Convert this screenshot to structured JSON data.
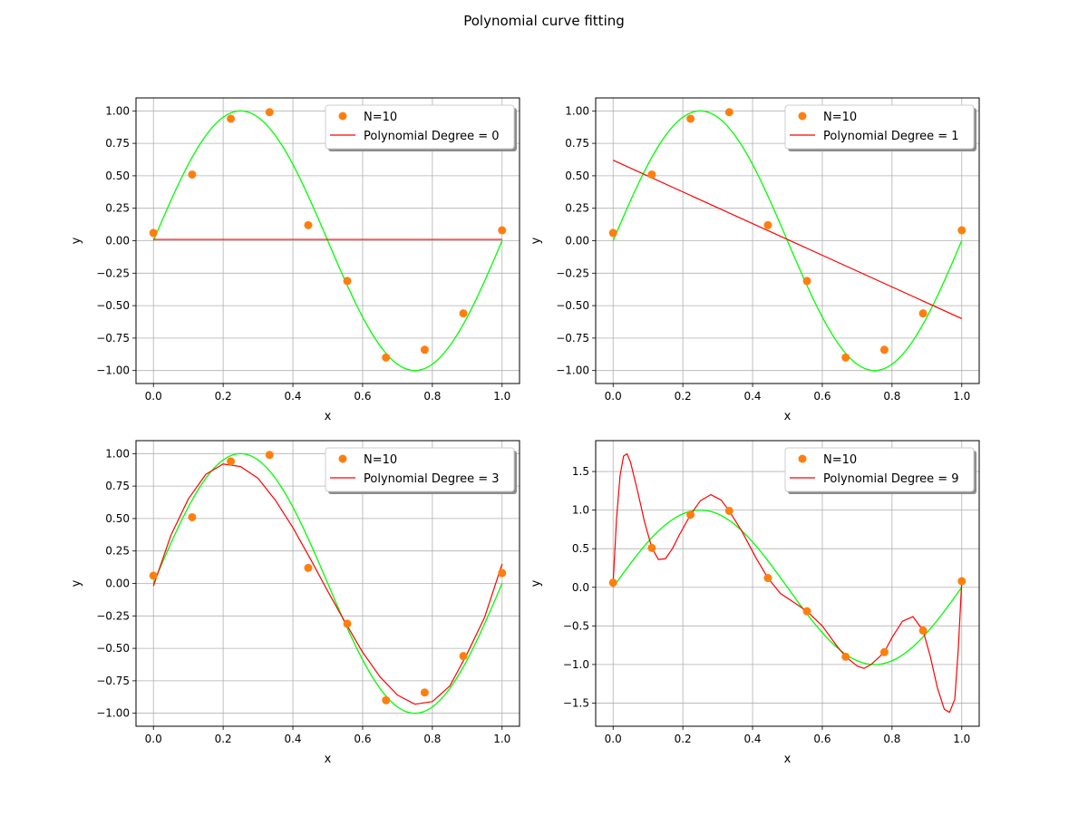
{
  "figure": {
    "title": "Polynomial curve fitting"
  },
  "colors": {
    "points": "#ff7f0e",
    "fit": "#ff0000",
    "truth": "#00ff00",
    "grid": "#b0b0b0"
  },
  "chart_data": [
    {
      "type": "scatter",
      "xlabel": "x",
      "ylabel": "y",
      "xlim": [
        -0.05,
        1.05
      ],
      "ylim": [
        -1.1,
        1.1
      ],
      "xticks": [
        0.0,
        0.2,
        0.4,
        0.6,
        0.8,
        1.0
      ],
      "xtick_labels": [
        "0.0",
        "0.2",
        "0.4",
        "0.6",
        "0.8",
        "1.0"
      ],
      "yticks": [
        -1.0,
        -0.75,
        -0.5,
        -0.25,
        0.0,
        0.25,
        0.5,
        0.75,
        1.0
      ],
      "ytick_labels": [
        "−1.00",
        "−0.75",
        "−0.50",
        "−0.25",
        "0.00",
        "0.25",
        "0.50",
        "0.75",
        "1.00"
      ],
      "grid": true,
      "legend_position": "top-right",
      "points_label": "N=10",
      "fit_label": "Polynomial Degree = 0",
      "degree": 0,
      "points": {
        "x": [
          0.0,
          0.111,
          0.222,
          0.333,
          0.444,
          0.556,
          0.667,
          0.778,
          0.889,
          1.0
        ],
        "y": [
          0.06,
          0.51,
          0.94,
          0.99,
          0.12,
          -0.31,
          -0.9,
          -0.84,
          -0.56,
          0.08
        ]
      },
      "true_curve": {
        "function": "sin(2*pi*x)",
        "x_range": [
          0,
          1
        ]
      },
      "fit_curve": {
        "x": [
          0.0,
          1.0
        ],
        "y": [
          0.01,
          0.01
        ]
      }
    },
    {
      "type": "scatter",
      "xlabel": "x",
      "ylabel": "y",
      "xlim": [
        -0.05,
        1.05
      ],
      "ylim": [
        -1.1,
        1.1
      ],
      "xticks": [
        0.0,
        0.2,
        0.4,
        0.6,
        0.8,
        1.0
      ],
      "xtick_labels": [
        "0.0",
        "0.2",
        "0.4",
        "0.6",
        "0.8",
        "1.0"
      ],
      "yticks": [
        -1.0,
        -0.75,
        -0.5,
        -0.25,
        0.0,
        0.25,
        0.5,
        0.75,
        1.0
      ],
      "ytick_labels": [
        "−1.00",
        "−0.75",
        "−0.50",
        "−0.25",
        "0.00",
        "0.25",
        "0.50",
        "0.75",
        "1.00"
      ],
      "grid": true,
      "legend_position": "top-right",
      "points_label": "N=10",
      "fit_label": "Polynomial Degree = 1",
      "degree": 1,
      "points": {
        "x": [
          0.0,
          0.111,
          0.222,
          0.333,
          0.444,
          0.556,
          0.667,
          0.778,
          0.889,
          1.0
        ],
        "y": [
          0.06,
          0.51,
          0.94,
          0.99,
          0.12,
          -0.31,
          -0.9,
          -0.84,
          -0.56,
          0.08
        ]
      },
      "true_curve": {
        "function": "sin(2*pi*x)",
        "x_range": [
          0,
          1
        ]
      },
      "fit_curve": {
        "x": [
          0.0,
          1.0
        ],
        "y": [
          0.62,
          -0.6
        ]
      }
    },
    {
      "type": "scatter",
      "xlabel": "x",
      "ylabel": "y",
      "xlim": [
        -0.05,
        1.05
      ],
      "ylim": [
        -1.1,
        1.1
      ],
      "xticks": [
        0.0,
        0.2,
        0.4,
        0.6,
        0.8,
        1.0
      ],
      "xtick_labels": [
        "0.0",
        "0.2",
        "0.4",
        "0.6",
        "0.8",
        "1.0"
      ],
      "yticks": [
        -1.0,
        -0.75,
        -0.5,
        -0.25,
        0.0,
        0.25,
        0.5,
        0.75,
        1.0
      ],
      "ytick_labels": [
        "−1.00",
        "−0.75",
        "−0.50",
        "−0.25",
        "0.00",
        "0.25",
        "0.50",
        "0.75",
        "1.00"
      ],
      "grid": true,
      "legend_position": "top-right",
      "points_label": "N=10",
      "fit_label": "Polynomial Degree = 3",
      "degree": 3,
      "points": {
        "x": [
          0.0,
          0.111,
          0.222,
          0.333,
          0.444,
          0.556,
          0.667,
          0.778,
          0.889,
          1.0
        ],
        "y": [
          0.06,
          0.51,
          0.94,
          0.99,
          0.12,
          -0.31,
          -0.9,
          -0.84,
          -0.56,
          0.08
        ]
      },
      "true_curve": {
        "function": "sin(2*pi*x)",
        "x_range": [
          0,
          1
        ]
      },
      "fit_curve": {
        "x": [
          0.0,
          0.05,
          0.1,
          0.15,
          0.2,
          0.25,
          0.3,
          0.35,
          0.4,
          0.45,
          0.5,
          0.55,
          0.6,
          0.65,
          0.7,
          0.75,
          0.8,
          0.85,
          0.9,
          0.95,
          1.0
        ],
        "y": [
          -0.02,
          0.37,
          0.65,
          0.84,
          0.92,
          0.9,
          0.81,
          0.64,
          0.43,
          0.19,
          -0.06,
          -0.3,
          -0.53,
          -0.72,
          -0.86,
          -0.93,
          -0.91,
          -0.79,
          -0.54,
          -0.26,
          0.15
        ]
      }
    },
    {
      "type": "scatter",
      "xlabel": "x",
      "ylabel": "y",
      "xlim": [
        -0.05,
        1.05
      ],
      "ylim": [
        -1.8,
        1.9
      ],
      "xticks": [
        0.0,
        0.2,
        0.4,
        0.6,
        0.8,
        1.0
      ],
      "xtick_labels": [
        "0.0",
        "0.2",
        "0.4",
        "0.6",
        "0.8",
        "1.0"
      ],
      "yticks": [
        -1.5,
        -1.0,
        -0.5,
        0.0,
        0.5,
        1.0,
        1.5
      ],
      "ytick_labels": [
        "−1.5",
        "−1.0",
        "−0.5",
        "0.0",
        "0.5",
        "1.0",
        "1.5"
      ],
      "grid": true,
      "legend_position": "top-right",
      "points_label": "N=10",
      "fit_label": "Polynomial Degree = 9",
      "degree": 9,
      "points": {
        "x": [
          0.0,
          0.111,
          0.222,
          0.333,
          0.444,
          0.556,
          0.667,
          0.778,
          0.889,
          1.0
        ],
        "y": [
          0.06,
          0.51,
          0.94,
          0.99,
          0.12,
          -0.31,
          -0.9,
          -0.84,
          -0.56,
          0.08
        ]
      },
      "true_curve": {
        "function": "sin(2*pi*x)",
        "x_range": [
          0,
          1
        ]
      },
      "fit_curve": {
        "x": [
          0.0,
          0.01,
          0.02,
          0.03,
          0.04,
          0.05,
          0.07,
          0.09,
          0.111,
          0.13,
          0.15,
          0.17,
          0.19,
          0.222,
          0.25,
          0.28,
          0.31,
          0.333,
          0.37,
          0.41,
          0.444,
          0.48,
          0.52,
          0.556,
          0.6,
          0.64,
          0.667,
          0.7,
          0.72,
          0.74,
          0.778,
          0.8,
          0.83,
          0.86,
          0.889,
          0.91,
          0.93,
          0.95,
          0.965,
          0.98,
          0.99,
          1.0
        ],
        "y": [
          0.06,
          0.9,
          1.45,
          1.7,
          1.73,
          1.62,
          1.25,
          0.85,
          0.51,
          0.36,
          0.37,
          0.5,
          0.68,
          0.94,
          1.12,
          1.2,
          1.13,
          0.99,
          0.72,
          0.38,
          0.12,
          -0.08,
          -0.2,
          -0.31,
          -0.5,
          -0.75,
          -0.9,
          -1.02,
          -1.05,
          -1.0,
          -0.84,
          -0.65,
          -0.44,
          -0.38,
          -0.56,
          -0.9,
          -1.3,
          -1.58,
          -1.62,
          -1.45,
          -0.8,
          0.08
        ]
      }
    }
  ]
}
